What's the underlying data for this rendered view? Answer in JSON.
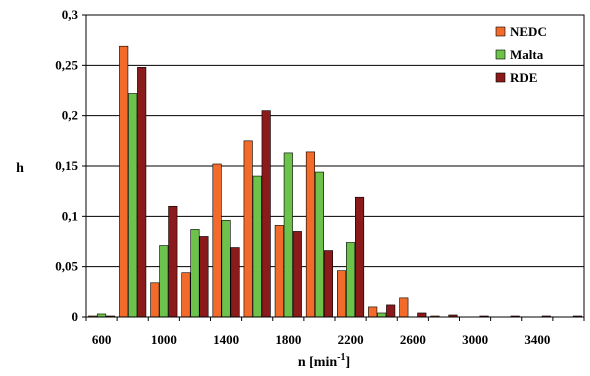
{
  "chart_data": {
    "type": "bar",
    "title": "",
    "xlabel": "n [min",
    "xlabel_sup": "-1",
    "xlabel_end": "]",
    "ylabel": "h",
    "ylim": [
      0,
      0.3
    ],
    "yticks": [
      "0",
      "0,05",
      "0,1",
      "0,15",
      "0,2",
      "0,25",
      "0,3"
    ],
    "xtick_labels": [
      "600",
      "1000",
      "1400",
      "1800",
      "2200",
      "2600",
      "3000",
      "3400"
    ],
    "categories": [
      "600",
      "800",
      "1000",
      "1200",
      "1400",
      "1600",
      "1800",
      "2000",
      "2200",
      "2400",
      "2600",
      "2800",
      "3000",
      "3200",
      "3400",
      "3600"
    ],
    "series": [
      {
        "name": "NEDC",
        "color": "#F26B2A",
        "values": [
          0.001,
          0.269,
          0.034,
          0.044,
          0.152,
          0.175,
          0.091,
          0.164,
          0.046,
          0.01,
          0.019,
          0.001,
          0.0,
          0.0,
          0.0,
          0.0
        ]
      },
      {
        "name": "Malta",
        "color": "#6CC24A",
        "values": [
          0.003,
          0.222,
          0.071,
          0.087,
          0.096,
          0.14,
          0.163,
          0.144,
          0.074,
          0.004,
          0.0,
          0.0,
          0.0,
          0.0,
          0.0,
          0.0
        ]
      },
      {
        "name": "RDE",
        "color": "#8B1A1A",
        "values": [
          0.001,
          0.248,
          0.11,
          0.08,
          0.069,
          0.205,
          0.085,
          0.066,
          0.119,
          0.012,
          0.004,
          0.002,
          0.001,
          0.001,
          0.001,
          0.001
        ]
      }
    ],
    "grid": true,
    "legend_position": "top-right"
  }
}
